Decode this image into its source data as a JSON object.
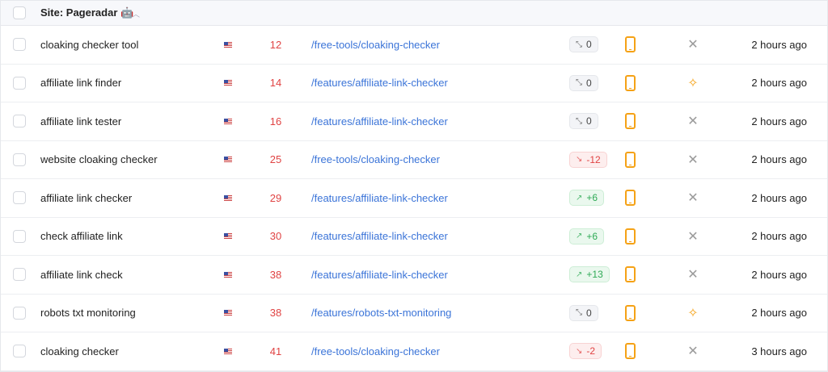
{
  "group": {
    "title": "Site: Pageradar 🤖",
    "collapse_icon": "chevron-up-icon"
  },
  "colors": {
    "position": "#e04343",
    "url": "#3b74d8",
    "device": "#f5a216",
    "up": "#2eaa55",
    "down": "#e04343"
  },
  "rows": [
    {
      "keyword": "cloaking checker tool",
      "country": "US",
      "position": "12",
      "url": "/free-tools/cloaking-checker",
      "change": "0",
      "trend": "neutral",
      "device": "mobile",
      "feature": "none",
      "updated": "2 hours ago"
    },
    {
      "keyword": "affiliate link finder",
      "country": "US",
      "position": "14",
      "url": "/features/affiliate-link-checker",
      "change": "0",
      "trend": "neutral",
      "device": "mobile",
      "feature": "sparkles",
      "updated": "2 hours ago"
    },
    {
      "keyword": "affiliate link tester",
      "country": "US",
      "position": "16",
      "url": "/features/affiliate-link-checker",
      "change": "0",
      "trend": "neutral",
      "device": "mobile",
      "feature": "none",
      "updated": "2 hours ago"
    },
    {
      "keyword": "website cloaking checker",
      "country": "US",
      "position": "25",
      "url": "/free-tools/cloaking-checker",
      "change": "-12",
      "trend": "down",
      "device": "mobile",
      "feature": "none",
      "updated": "2 hours ago"
    },
    {
      "keyword": "affiliate link checker",
      "country": "US",
      "position": "29",
      "url": "/features/affiliate-link-checker",
      "change": "+6",
      "trend": "up",
      "device": "mobile",
      "feature": "none",
      "updated": "2 hours ago"
    },
    {
      "keyword": "check affiliate link",
      "country": "US",
      "position": "30",
      "url": "/features/affiliate-link-checker",
      "change": "+6",
      "trend": "up",
      "device": "mobile",
      "feature": "none",
      "updated": "2 hours ago"
    },
    {
      "keyword": "affiliate link check",
      "country": "US",
      "position": "38",
      "url": "/features/affiliate-link-checker",
      "change": "+13",
      "trend": "up",
      "device": "mobile",
      "feature": "none",
      "updated": "2 hours ago"
    },
    {
      "keyword": "robots txt monitoring",
      "country": "US",
      "position": "38",
      "url": "/features/robots-txt-monitoring",
      "change": "0",
      "trend": "neutral",
      "device": "mobile",
      "feature": "sparkles",
      "updated": "2 hours ago"
    },
    {
      "keyword": "cloaking checker",
      "country": "US",
      "position": "41",
      "url": "/free-tools/cloaking-checker",
      "change": "-2",
      "trend": "down",
      "device": "mobile",
      "feature": "none",
      "updated": "3 hours ago"
    }
  ]
}
